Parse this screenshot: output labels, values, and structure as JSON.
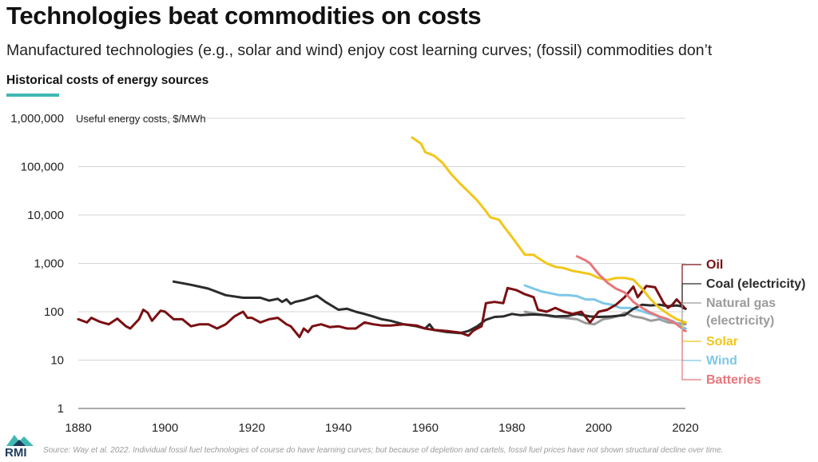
{
  "header": {
    "title": "Technologies beat commodities on costs",
    "subtitle": "Manufactured technologies (e.g., solar and wind) enjoy cost learning curves; (fossil) commodities don’t",
    "chart_label": "Historical costs of energy sources"
  },
  "footer": {
    "source": "Source: Way et al. 2022. Individual fossil fuel technologies of course do have learning curves; but because of depletion and cartels, fossil fuel prices have not shown structural decline over time.",
    "logo_text": "RMI"
  },
  "colors": {
    "oil": "#7a0f12",
    "coal": "#2b2b2b",
    "gas": "#9b9b9b",
    "solar": "#f2c619",
    "wind": "#7ec8e9",
    "batteries": "#e8767a",
    "accent": "#3fb8b3",
    "grid": "#d5d5d5"
  },
  "chart_data": {
    "type": "line",
    "title": "Historical costs of energy sources",
    "ylabel": "Useful energy costs, $/MWh",
    "y_scale": "log",
    "xlim": [
      1880,
      2020
    ],
    "ylim": [
      1,
      1000000
    ],
    "x_ticks": [
      "1880",
      "1900",
      "1920",
      "1940",
      "1960",
      "1980",
      "2000",
      "2020"
    ],
    "y_ticks": [
      {
        "value": 1,
        "label": "1"
      },
      {
        "value": 10,
        "label": "10"
      },
      {
        "value": 100,
        "label": "100"
      },
      {
        "value": 1000,
        "label": "1,000"
      },
      {
        "value": 10000,
        "label": "10,000"
      },
      {
        "value": 100000,
        "label": "100,000"
      },
      {
        "value": 1000000,
        "label": "1,000,000"
      }
    ],
    "series": [
      {
        "key": "coal",
        "name": "Coal (electricity)",
        "points": [
          [
            1902,
            420
          ],
          [
            1906,
            360
          ],
          [
            1910,
            300
          ],
          [
            1914,
            220
          ],
          [
            1918,
            195
          ],
          [
            1922,
            195
          ],
          [
            1924,
            170
          ],
          [
            1926,
            185
          ],
          [
            1927,
            160
          ],
          [
            1928,
            180
          ],
          [
            1929,
            145
          ],
          [
            1930,
            160
          ],
          [
            1932,
            175
          ],
          [
            1935,
            215
          ],
          [
            1937,
            160
          ],
          [
            1940,
            110
          ],
          [
            1942,
            115
          ],
          [
            1944,
            100
          ],
          [
            1946,
            90
          ],
          [
            1948,
            80
          ],
          [
            1950,
            70
          ],
          [
            1952,
            65
          ],
          [
            1955,
            55
          ],
          [
            1958,
            50
          ],
          [
            1960,
            45
          ],
          [
            1961,
            55
          ],
          [
            1962,
            42
          ],
          [
            1965,
            38
          ],
          [
            1968,
            36
          ],
          [
            1970,
            40
          ],
          [
            1972,
            50
          ],
          [
            1974,
            68
          ],
          [
            1976,
            78
          ],
          [
            1978,
            80
          ],
          [
            1980,
            90
          ],
          [
            1982,
            85
          ],
          [
            1985,
            88
          ],
          [
            1988,
            85
          ],
          [
            1990,
            80
          ],
          [
            1993,
            82
          ],
          [
            1995,
            90
          ],
          [
            1998,
            80
          ],
          [
            2000,
            78
          ],
          [
            2003,
            80
          ],
          [
            2006,
            85
          ],
          [
            2008,
            115
          ],
          [
            2010,
            140
          ],
          [
            2012,
            135
          ],
          [
            2014,
            140
          ],
          [
            2016,
            130
          ],
          [
            2018,
            135
          ],
          [
            2019,
            130
          ],
          [
            2020,
            115
          ]
        ]
      },
      {
        "key": "oil",
        "name": "Oil",
        "points": [
          [
            1880,
            70
          ],
          [
            1882,
            60
          ],
          [
            1883,
            75
          ],
          [
            1885,
            62
          ],
          [
            1887,
            55
          ],
          [
            1889,
            72
          ],
          [
            1891,
            50
          ],
          [
            1892,
            45
          ],
          [
            1894,
            70
          ],
          [
            1895,
            110
          ],
          [
            1896,
            95
          ],
          [
            1897,
            65
          ],
          [
            1899,
            105
          ],
          [
            1900,
            100
          ],
          [
            1902,
            70
          ],
          [
            1904,
            70
          ],
          [
            1906,
            50
          ],
          [
            1908,
            55
          ],
          [
            1910,
            55
          ],
          [
            1912,
            45
          ],
          [
            1914,
            55
          ],
          [
            1916,
            80
          ],
          [
            1917,
            90
          ],
          [
            1918,
            100
          ],
          [
            1919,
            75
          ],
          [
            1920,
            75
          ],
          [
            1922,
            60
          ],
          [
            1924,
            70
          ],
          [
            1926,
            75
          ],
          [
            1928,
            55
          ],
          [
            1929,
            50
          ],
          [
            1931,
            30
          ],
          [
            1932,
            45
          ],
          [
            1933,
            38
          ],
          [
            1934,
            50
          ],
          [
            1936,
            55
          ],
          [
            1938,
            48
          ],
          [
            1940,
            50
          ],
          [
            1942,
            45
          ],
          [
            1944,
            45
          ],
          [
            1946,
            60
          ],
          [
            1948,
            55
          ],
          [
            1950,
            52
          ],
          [
            1952,
            52
          ],
          [
            1955,
            55
          ],
          [
            1958,
            52
          ],
          [
            1960,
            45
          ],
          [
            1962,
            42
          ],
          [
            1965,
            40
          ],
          [
            1968,
            37
          ],
          [
            1970,
            32
          ],
          [
            1971,
            40
          ],
          [
            1972,
            45
          ],
          [
            1973,
            50
          ],
          [
            1974,
            150
          ],
          [
            1976,
            160
          ],
          [
            1978,
            150
          ],
          [
            1979,
            310
          ],
          [
            1981,
            280
          ],
          [
            1983,
            230
          ],
          [
            1985,
            200
          ],
          [
            1986,
            110
          ],
          [
            1988,
            100
          ],
          [
            1990,
            120
          ],
          [
            1992,
            100
          ],
          [
            1994,
            90
          ],
          [
            1996,
            100
          ],
          [
            1998,
            60
          ],
          [
            2000,
            100
          ],
          [
            2002,
            110
          ],
          [
            2004,
            140
          ],
          [
            2006,
            200
          ],
          [
            2008,
            330
          ],
          [
            2009,
            200
          ],
          [
            2011,
            340
          ],
          [
            2013,
            320
          ],
          [
            2015,
            150
          ],
          [
            2016,
            120
          ],
          [
            2017,
            140
          ],
          [
            2018,
            180
          ],
          [
            2020,
            115
          ]
        ]
      },
      {
        "key": "gas",
        "name": "Natural gas (electricity)",
        "points": [
          [
            1983,
            100
          ],
          [
            1986,
            90
          ],
          [
            1989,
            80
          ],
          [
            1992,
            75
          ],
          [
            1995,
            70
          ],
          [
            1997,
            58
          ],
          [
            1999,
            55
          ],
          [
            2001,
            70
          ],
          [
            2003,
            75
          ],
          [
            2005,
            85
          ],
          [
            2006,
            95
          ],
          [
            2008,
            80
          ],
          [
            2010,
            75
          ],
          [
            2012,
            65
          ],
          [
            2014,
            70
          ],
          [
            2016,
            60
          ],
          [
            2018,
            58
          ],
          [
            2020,
            55
          ]
        ]
      },
      {
        "key": "wind",
        "name": "Wind",
        "points": [
          [
            1983,
            350
          ],
          [
            1985,
            300
          ],
          [
            1987,
            260
          ],
          [
            1989,
            240
          ],
          [
            1991,
            220
          ],
          [
            1993,
            220
          ],
          [
            1995,
            210
          ],
          [
            1997,
            180
          ],
          [
            1999,
            180
          ],
          [
            2001,
            150
          ],
          [
            2003,
            140
          ],
          [
            2005,
            120
          ],
          [
            2007,
            120
          ],
          [
            2009,
            110
          ],
          [
            2011,
            95
          ],
          [
            2013,
            85
          ],
          [
            2015,
            70
          ],
          [
            2017,
            65
          ],
          [
            2019,
            50
          ],
          [
            2020,
            45
          ]
        ]
      },
      {
        "key": "solar",
        "name": "Solar",
        "points": [
          [
            1957,
            400000
          ],
          [
            1959,
            300000
          ],
          [
            1960,
            200000
          ],
          [
            1962,
            170000
          ],
          [
            1964,
            120000
          ],
          [
            1966,
            70000
          ],
          [
            1968,
            45000
          ],
          [
            1970,
            30000
          ],
          [
            1972,
            20000
          ],
          [
            1974,
            12000
          ],
          [
            1975,
            9000
          ],
          [
            1977,
            8000
          ],
          [
            1978,
            6000
          ],
          [
            1980,
            3500
          ],
          [
            1982,
            2000
          ],
          [
            1983,
            1500
          ],
          [
            1985,
            1500
          ],
          [
            1986,
            1300
          ],
          [
            1988,
            1000
          ],
          [
            1990,
            850
          ],
          [
            1992,
            800
          ],
          [
            1994,
            700
          ],
          [
            1996,
            650
          ],
          [
            1998,
            600
          ],
          [
            2000,
            500
          ],
          [
            2002,
            450
          ],
          [
            2004,
            500
          ],
          [
            2006,
            500
          ],
          [
            2008,
            460
          ],
          [
            2010,
            300
          ],
          [
            2012,
            180
          ],
          [
            2014,
            120
          ],
          [
            2016,
            90
          ],
          [
            2018,
            70
          ],
          [
            2020,
            60
          ]
        ]
      },
      {
        "key": "batteries",
        "name": "Batteries",
        "points": [
          [
            1995,
            1400
          ],
          [
            1997,
            1150
          ],
          [
            1998,
            1000
          ],
          [
            2000,
            600
          ],
          [
            2002,
            400
          ],
          [
            2004,
            300
          ],
          [
            2006,
            250
          ],
          [
            2008,
            160
          ],
          [
            2010,
            120
          ],
          [
            2012,
            95
          ],
          [
            2014,
            80
          ],
          [
            2016,
            70
          ],
          [
            2018,
            55
          ],
          [
            2020,
            40
          ]
        ]
      }
    ],
    "legend": [
      {
        "key": "oil",
        "label": "Oil",
        "lines": [
          "Oil"
        ]
      },
      {
        "key": "coal",
        "label": "Coal (electricity)",
        "lines": [
          "Coal (electricity)"
        ]
      },
      {
        "key": "gas",
        "label": "Natural gas (electricity)",
        "lines": [
          "Natural gas",
          "(electricity)"
        ]
      },
      {
        "key": "solar",
        "label": "Solar",
        "lines": [
          "Solar"
        ]
      },
      {
        "key": "wind",
        "label": "Wind",
        "lines": [
          "Wind"
        ]
      },
      {
        "key": "batteries",
        "label": "Batteries",
        "lines": [
          "Batteries"
        ]
      }
    ],
    "legend_placement": "right",
    "grid": true
  }
}
